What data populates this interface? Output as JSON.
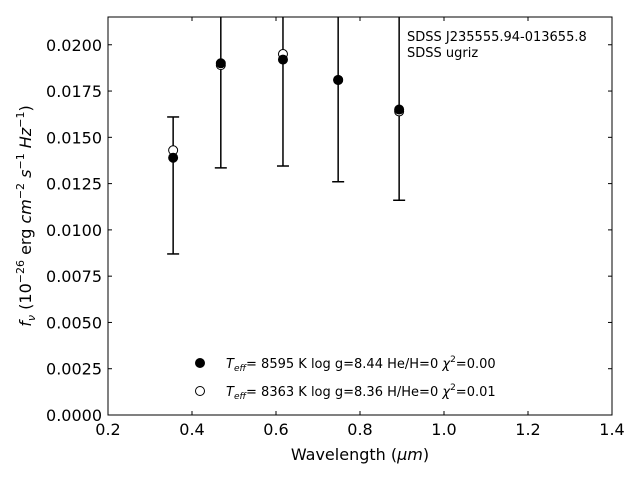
{
  "chart_data": {
    "type": "scatter",
    "xlabel_main": "Wavelength (",
    "xlabel_unit": "μm",
    "xlabel_close": ")",
    "ylabel": {
      "f": "f",
      "nu": "ν",
      "open": " (10",
      "exp26": "−26",
      "erg": " erg ",
      "cm": "cm",
      "exp2": "−2",
      "s": "s",
      "exp1a": "−1",
      "hz": "Hz",
      "exp1b": "−1",
      "close": ")"
    },
    "xlim": [
      0.2,
      1.4
    ],
    "ylim": [
      0.0,
      0.0215
    ],
    "xticks": [
      {
        "value": 0.2,
        "label": "0.2"
      },
      {
        "value": 0.4,
        "label": "0.4"
      },
      {
        "value": 0.6,
        "label": "0.6"
      },
      {
        "value": 0.8,
        "label": "0.8"
      },
      {
        "value": 1.0,
        "label": "1.0"
      },
      {
        "value": 1.2,
        "label": "1.2"
      },
      {
        "value": 1.4,
        "label": "1.4"
      }
    ],
    "yticks": [
      {
        "value": 0.0,
        "label": "0.0000"
      },
      {
        "value": 0.0025,
        "label": "0.0025"
      },
      {
        "value": 0.005,
        "label": "0.0050"
      },
      {
        "value": 0.0075,
        "label": "0.0075"
      },
      {
        "value": 0.01,
        "label": "0.0100"
      },
      {
        "value": 0.0125,
        "label": "0.0125"
      },
      {
        "value": 0.015,
        "label": "0.0150"
      },
      {
        "value": 0.0175,
        "label": "0.0175"
      },
      {
        "value": 0.02,
        "label": "0.0200"
      }
    ],
    "annotation": [
      "SDSS J235555.94-013655.8",
      "SDSS ugriz"
    ],
    "observed": {
      "x": [
        0.3551,
        0.4686,
        0.6166,
        0.748,
        0.8932
      ],
      "y": [
        0.0139,
        0.019,
        0.0192,
        0.0181,
        0.0165
      ],
      "err_low": [
        0.0087,
        0.01335,
        0.01345,
        0.0126,
        0.0116
      ],
      "err_high": [
        0.0161,
        0.0245,
        0.0245,
        0.0245,
        0.0245
      ]
    },
    "series": [
      {
        "marker": "filled",
        "teff_value": "8595 K",
        "logg": "log g=8.44",
        "comp": "He/H=0",
        "chi2": "=0.00",
        "x": [
          0.3551,
          0.4686,
          0.6166,
          0.748,
          0.8932
        ],
        "y": [
          0.0139,
          0.019,
          0.0192,
          0.0181,
          0.0165
        ]
      },
      {
        "marker": "open",
        "teff_value": "8363 K",
        "logg": "log g=8.36",
        "comp": "H/He=0",
        "chi2": "=0.01",
        "x": [
          0.3551,
          0.4686,
          0.6166,
          0.748,
          0.8932
        ],
        "y": [
          0.0143,
          0.0189,
          0.0195,
          0.0181,
          0.0164
        ]
      }
    ],
    "legend_teff_prefix": "T",
    "legend_teff_sub": "eff",
    "legend_teff_eq": "=",
    "legend_chi": "χ",
    "legend_chi_sup": "2",
    "legend_position": "lower-center",
    "grid": false,
    "colors": {
      "marker": "#000000",
      "errorbar": "#000000",
      "axes": "#000000"
    }
  }
}
